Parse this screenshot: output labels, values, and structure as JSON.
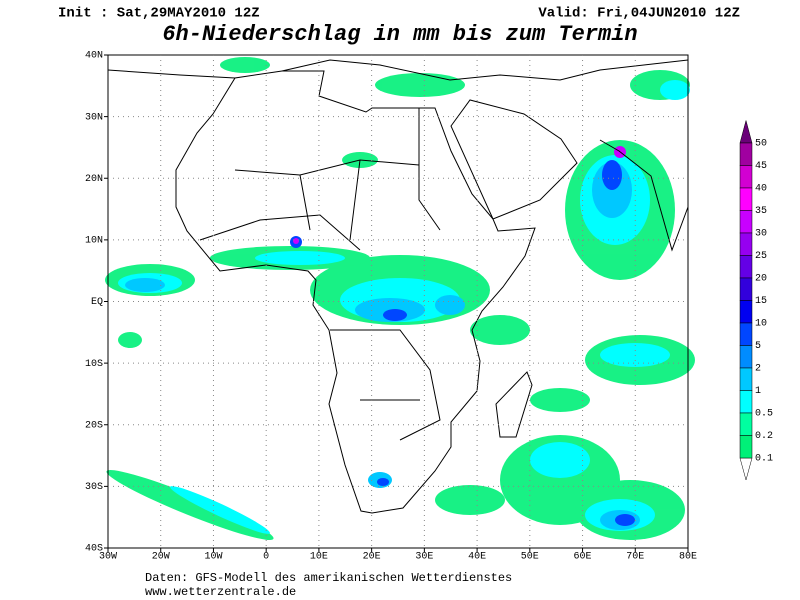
{
  "header": {
    "init": "Init : Sat,29MAY2010 12Z",
    "valid": "Valid: Fri,04JUN2010 12Z",
    "title": "6h-Niederschlag in mm bis zum Termin"
  },
  "map": {
    "lon_labels": [
      "30W",
      "20W",
      "10W",
      "0",
      "10E",
      "20E",
      "30E",
      "40E",
      "50E",
      "60E",
      "70E",
      "80E"
    ],
    "lat_labels": [
      "40N",
      "30N",
      "20N",
      "10N",
      "EQ",
      "10S",
      "20S",
      "30S",
      "40S"
    ]
  },
  "legend": {
    "levels": [
      {
        "value": 50,
        "color": "#6a0078"
      },
      {
        "value": 45,
        "color": "#a000a0"
      },
      {
        "value": 40,
        "color": "#d200d2"
      },
      {
        "value": 35,
        "color": "#ff00ff"
      },
      {
        "value": 30,
        "color": "#c800ff"
      },
      {
        "value": 25,
        "color": "#9600f0"
      },
      {
        "value": 20,
        "color": "#6400e6"
      },
      {
        "value": 15,
        "color": "#3200dc"
      },
      {
        "value": 10,
        "color": "#0000f0"
      },
      {
        "value": 5,
        "color": "#0046ff"
      },
      {
        "value": 2,
        "color": "#008cff"
      },
      {
        "value": 1,
        "color": "#00c8ff"
      },
      {
        "value": 0.5,
        "color": "#00ffff"
      },
      {
        "value": 0.2,
        "color": "#00ffa0"
      },
      {
        "value": 0.1,
        "color": "#00f078"
      }
    ]
  },
  "footer": {
    "source": "Daten: GFS-Modell des amerikanischen Wetterdienstes",
    "url": "www.wetterzentrale.de"
  }
}
